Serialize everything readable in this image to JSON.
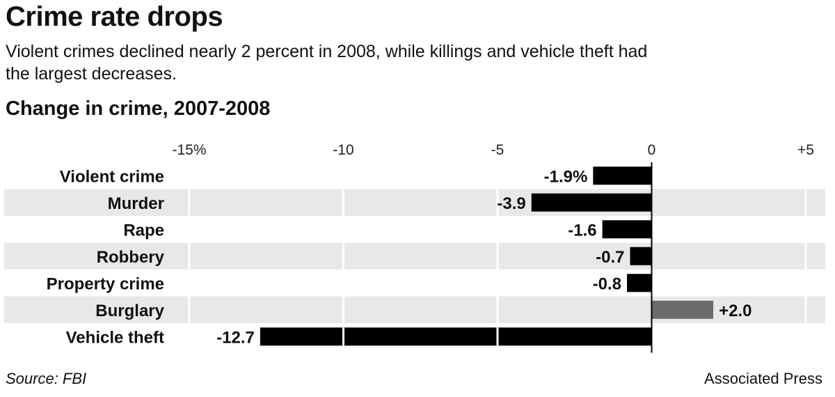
{
  "header": {
    "title": "Crime rate drops",
    "subtitle": "Violent crimes declined nearly 2 percent in 2008, while killings and vehicle theft had the largest decreases."
  },
  "footer": {
    "source": "Source: FBI",
    "credit": "Associated Press"
  },
  "chart_data": {
    "type": "bar",
    "orientation": "horizontal",
    "title": "Change in crime, 2007-2008",
    "xlabel": "",
    "ylabel": "",
    "xlim": [
      -15,
      5
    ],
    "ticks": [
      {
        "value": -15,
        "label": "-15%"
      },
      {
        "value": -10,
        "label": "-10"
      },
      {
        "value": -5,
        "label": "-5"
      },
      {
        "value": 0,
        "label": "0"
      },
      {
        "value": 5,
        "label": "+5"
      }
    ],
    "categories": [
      "Violent crime",
      "Murder",
      "Rape",
      "Robbery",
      "Property crime",
      "Burglary",
      "Vehicle theft"
    ],
    "values": [
      -1.9,
      -3.9,
      -1.6,
      -0.7,
      -0.8,
      2.0,
      -12.7
    ],
    "value_labels": [
      "-1.9%",
      "-3.9",
      "-1.6",
      "-0.7",
      "-0.8",
      "+2.0",
      "-12.7"
    ],
    "grid": false,
    "colors": {
      "negative": "#000000",
      "positive": "#6b6b6b",
      "band": "#e8e8e8"
    }
  }
}
